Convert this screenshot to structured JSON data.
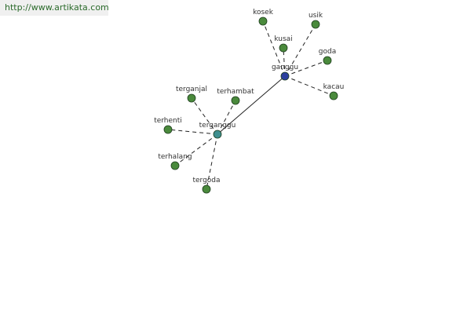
{
  "header": {
    "url": "http://www.artikata.com"
  },
  "nodes": [
    {
      "label": "ganggu"
    },
    {
      "label": "terganggu"
    },
    {
      "label": "kosek"
    },
    {
      "label": "usik"
    },
    {
      "label": "kusai"
    },
    {
      "label": "goda"
    },
    {
      "label": "kacau"
    },
    {
      "label": "terganjal"
    },
    {
      "label": "terhambat"
    },
    {
      "label": "terhenti"
    },
    {
      "label": "terhalang"
    },
    {
      "label": "tergoda"
    }
  ]
}
